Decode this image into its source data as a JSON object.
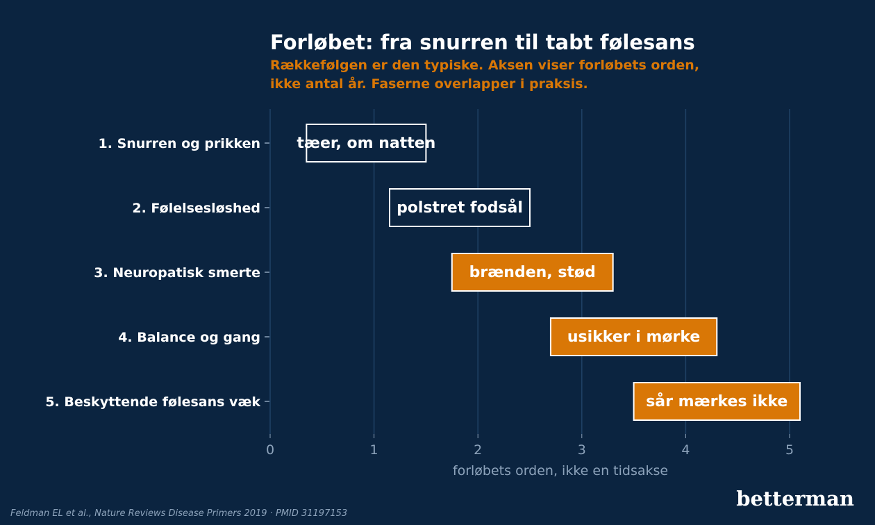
{
  "colors": {
    "background": "#0b2440",
    "early": "#0b2440",
    "late": "#d97706",
    "border": "#ffffff",
    "grid": "#1f4266",
    "muted": "#8da3bb"
  },
  "chart_data": {
    "type": "bar",
    "orientation": "horizontal",
    "title": "Forløbet: fra snurren til tabt følesans",
    "subtitle_lines": [
      "Rækkefølgen er den typiske. Aksen viser forløbets orden,",
      "ikke antal år. Faserne overlapper i praksis."
    ],
    "xlabel": "forløbets orden, ikke en tidsakse",
    "xlim": [
      0,
      5
    ],
    "xticks": [
      "0",
      "1",
      "2",
      "3",
      "4",
      "5"
    ],
    "grid": true,
    "categories": [
      "1. Snurren og prikken",
      "2. Følelsesløshed",
      "3. Neuropatisk smerte",
      "4. Balance og gang",
      "5. Beskyttende følesans væk"
    ],
    "bars": [
      {
        "start": 0.35,
        "end": 1.5,
        "label": "tæer, om natten",
        "group": "early"
      },
      {
        "start": 1.15,
        "end": 2.5,
        "label": "polstret fodsål",
        "group": "early"
      },
      {
        "start": 1.75,
        "end": 3.3,
        "label": "brænden, stød",
        "group": "late"
      },
      {
        "start": 2.7,
        "end": 4.3,
        "label": "usikker i mørke",
        "group": "late"
      },
      {
        "start": 3.5,
        "end": 5.1,
        "label": "sår mærkes ikke",
        "group": "late"
      }
    ]
  },
  "source": "Feldman EL et al., Nature Reviews Disease Primers 2019 · PMID 31197153",
  "brand": "betterman"
}
